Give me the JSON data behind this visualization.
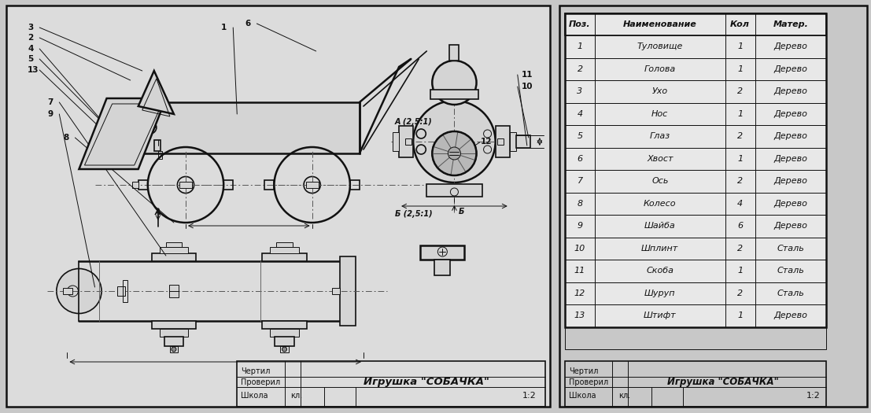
{
  "bg_color": "#c8c8c8",
  "drawing_area_color": "#dcdcdc",
  "line_color": "#111111",
  "center_line_color": "#555555",
  "fill_color": "#d4d4d4",
  "title": "Игрушка \"СОБАЧКА\"",
  "scale": "1:2",
  "school_label": "Школа",
  "chertil_label": "Чертил",
  "proveril_label": "Проверил",
  "kl_label": "кл.",
  "table_headers": [
    "Поз.",
    "Наименование",
    "Кол",
    "Матер."
  ],
  "table_rows": [
    [
      "1",
      "Туловище",
      "1",
      "Дерево"
    ],
    [
      "2",
      "Голова",
      "1",
      "Дерево"
    ],
    [
      "3",
      "Ухо",
      "2",
      "Дерево"
    ],
    [
      "4",
      "Нос",
      "1",
      "Дерево"
    ],
    [
      "5",
      "Глаз",
      "2",
      "Дерево"
    ],
    [
      "6",
      "Хвост",
      "1",
      "Дерево"
    ],
    [
      "7",
      "Ось",
      "2",
      "Дерево"
    ],
    [
      "8",
      "Колесо",
      "4",
      "Дерево"
    ],
    [
      "9",
      "Шайба",
      "6",
      "Дерево"
    ],
    [
      "10",
      "Шплинт",
      "2",
      "Сталь"
    ],
    [
      "11",
      "Скоба",
      "1",
      "Сталь"
    ],
    [
      "12",
      "Шуруп",
      "2",
      "Сталь"
    ],
    [
      "13",
      "Штифт",
      "1",
      "Дерево"
    ]
  ],
  "section_A_label": "А (2,5:1)",
  "section_B_label": "Б (2,5:1)",
  "cut_A_label": "А",
  "cut_B_label": "Б",
  "font_size_table": 8,
  "font_size_labels": 7,
  "font_size_title": 9.5,
  "font_size_numbers": 7.5
}
